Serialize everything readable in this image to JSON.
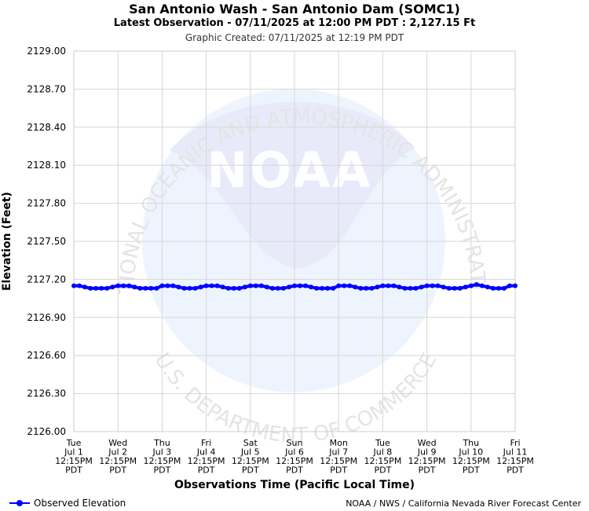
{
  "header": {
    "title": "San Antonio Wash - San Antonio Dam (SOMC1)",
    "subtitle": "Latest Observation - 07/11/2025 at 12:00 PM PDT : 2,127.15 Ft",
    "created": "Graphic Created: 07/11/2025 at 12:19 PM PDT"
  },
  "watermark": {
    "logo_text": "NOAA",
    "ring_top": "NATIONAL OCEANIC AND ATMOSPHERIC ADMINISTRATION",
    "ring_bottom": "U.S. DEPARTMENT OF COMMERCE"
  },
  "legend": {
    "label": "Observed Elevation",
    "color": "#0000ff"
  },
  "credit": "NOAA / NWS / California Nevada River Forecast Center",
  "chart_data": {
    "type": "line",
    "xlabel": "Observations Time (Pacific Local Time)",
    "ylabel": "Elevation (Feet)",
    "ylim": [
      2126.0,
      2129.0
    ],
    "yticks": [
      "2129.00",
      "2128.70",
      "2128.40",
      "2128.10",
      "2127.80",
      "2127.50",
      "2127.20",
      "2126.90",
      "2126.60",
      "2126.30",
      "2126.00"
    ],
    "ytick_values": [
      2129.0,
      2128.7,
      2128.4,
      2128.1,
      2127.8,
      2127.5,
      2127.2,
      2126.9,
      2126.6,
      2126.3,
      2126.0
    ],
    "xlim": [
      0,
      10
    ],
    "xticks": [
      [
        "Tue",
        "Jul 1",
        "12:15PM",
        "PDT"
      ],
      [
        "Wed",
        "Jul 2",
        "12:15PM",
        "PDT"
      ],
      [
        "Thu",
        "Jul 3",
        "12:15PM",
        "PDT"
      ],
      [
        "Fri",
        "Jul 4",
        "12:15PM",
        "PDT"
      ],
      [
        "Sat",
        "Jul 5",
        "12:15PM",
        "PDT"
      ],
      [
        "Sun",
        "Jul 6",
        "12:15PM",
        "PDT"
      ],
      [
        "Mon",
        "Jul 7",
        "12:15PM",
        "PDT"
      ],
      [
        "Tue",
        "Jul 8",
        "12:15PM",
        "PDT"
      ],
      [
        "Wed",
        "Jul 9",
        "12:15PM",
        "PDT"
      ],
      [
        "Thu",
        "Jul 10",
        "12:15PM",
        "PDT"
      ],
      [
        "Fri",
        "Jul 11",
        "12:15PM",
        "PDT"
      ]
    ],
    "grid": true,
    "series": [
      {
        "name": "Observed Elevation",
        "color": "#0000ff",
        "x": [
          0,
          0.125,
          0.25,
          0.375,
          0.5,
          0.625,
          0.75,
          0.875,
          1,
          1.125,
          1.25,
          1.375,
          1.5,
          1.625,
          1.75,
          1.875,
          2,
          2.125,
          2.25,
          2.375,
          2.5,
          2.625,
          2.75,
          2.875,
          3,
          3.125,
          3.25,
          3.375,
          3.5,
          3.625,
          3.75,
          3.875,
          4,
          4.125,
          4.25,
          4.375,
          4.5,
          4.625,
          4.75,
          4.875,
          5,
          5.125,
          5.25,
          5.375,
          5.5,
          5.625,
          5.75,
          5.875,
          6,
          6.125,
          6.25,
          6.375,
          6.5,
          6.625,
          6.75,
          6.875,
          7,
          7.125,
          7.25,
          7.375,
          7.5,
          7.625,
          7.75,
          7.875,
          8,
          8.125,
          8.25,
          8.375,
          8.5,
          8.625,
          8.75,
          8.875,
          9,
          9.125,
          9.25,
          9.375,
          9.5,
          9.625,
          9.75,
          9.875,
          10
        ],
        "y": [
          2127.15,
          2127.15,
          2127.14,
          2127.13,
          2127.13,
          2127.13,
          2127.13,
          2127.14,
          2127.15,
          2127.15,
          2127.15,
          2127.14,
          2127.13,
          2127.13,
          2127.13,
          2127.13,
          2127.15,
          2127.15,
          2127.15,
          2127.14,
          2127.13,
          2127.13,
          2127.13,
          2127.14,
          2127.15,
          2127.15,
          2127.15,
          2127.14,
          2127.13,
          2127.13,
          2127.13,
          2127.14,
          2127.15,
          2127.15,
          2127.15,
          2127.14,
          2127.13,
          2127.13,
          2127.13,
          2127.14,
          2127.15,
          2127.15,
          2127.15,
          2127.14,
          2127.13,
          2127.13,
          2127.13,
          2127.13,
          2127.15,
          2127.15,
          2127.15,
          2127.14,
          2127.13,
          2127.13,
          2127.13,
          2127.14,
          2127.15,
          2127.15,
          2127.15,
          2127.14,
          2127.13,
          2127.13,
          2127.13,
          2127.14,
          2127.15,
          2127.15,
          2127.15,
          2127.14,
          2127.13,
          2127.13,
          2127.13,
          2127.14,
          2127.15,
          2127.16,
          2127.15,
          2127.14,
          2127.13,
          2127.13,
          2127.13,
          2127.15,
          2127.15
        ]
      }
    ]
  }
}
